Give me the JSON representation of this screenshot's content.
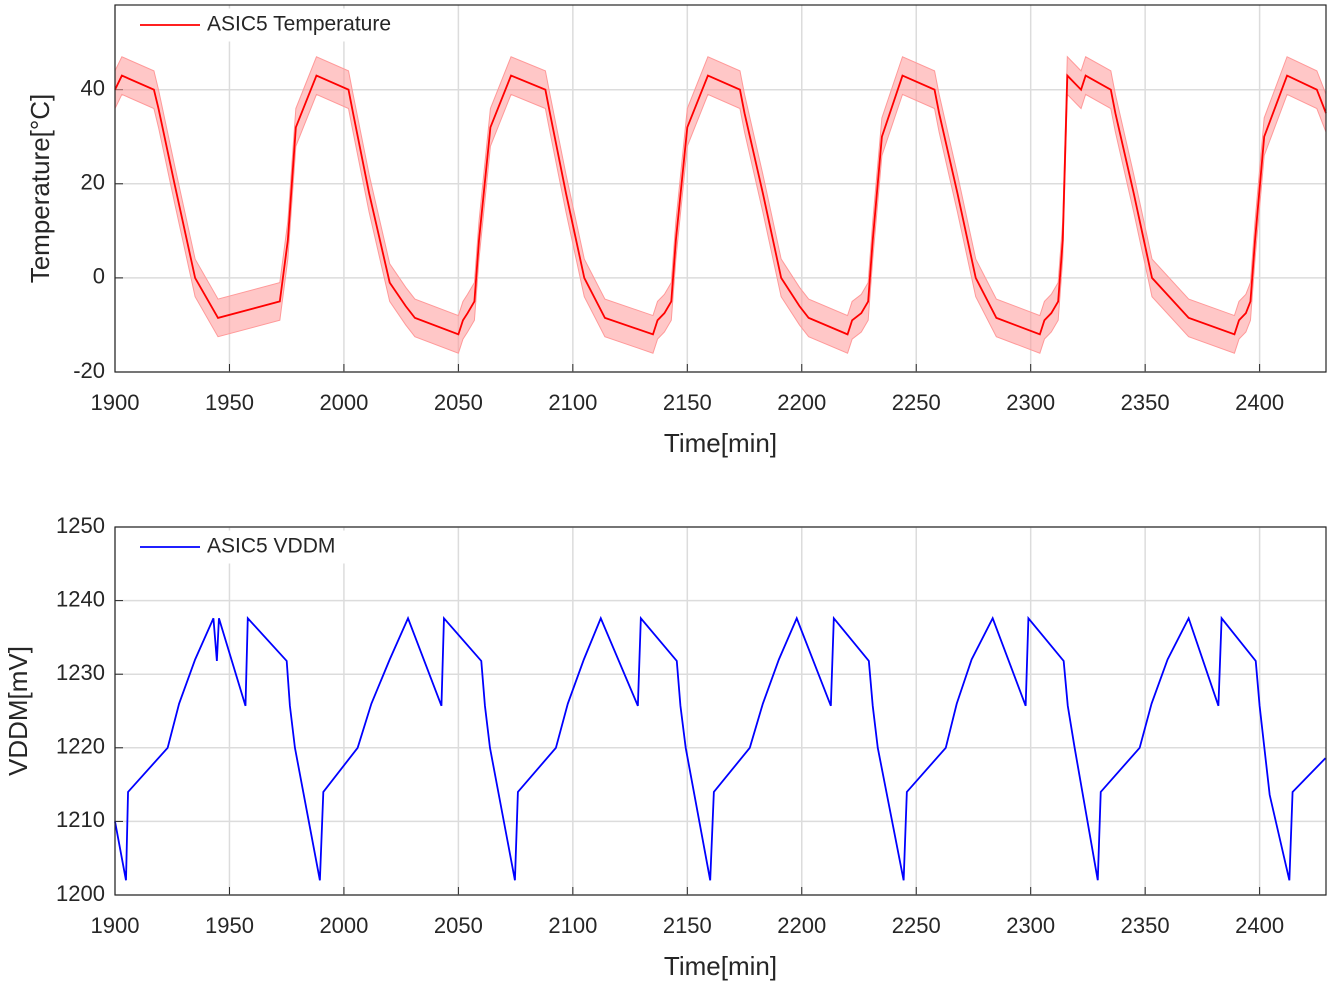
{
  "chart_data": [
    {
      "type": "line",
      "xlabel": "Time[min]",
      "ylabel": "Temperature[°C]",
      "x": [
        1900,
        1903,
        1917,
        1919,
        1926,
        1935,
        1945,
        1972,
        1975.5,
        1979,
        1988,
        2002,
        2004,
        2011,
        2020,
        2027,
        2031,
        2050,
        2052,
        2054,
        2057,
        2059,
        2064,
        2073,
        2088,
        2090,
        2097,
        2105,
        2114,
        2135,
        2137,
        2140,
        2143,
        2145,
        2150,
        2159,
        2173,
        2175,
        2183,
        2191,
        2199,
        2203,
        2220,
        2222,
        2226,
        2229,
        2231,
        2235,
        2244,
        2258,
        2260,
        2268,
        2276,
        2285,
        2304,
        2306,
        2309,
        2312,
        2314,
        2316,
        2322,
        2324,
        2335,
        2337,
        2345,
        2353,
        2369,
        2389,
        2391,
        2394,
        2396,
        2398,
        2402,
        2412,
        2425,
        2429
      ],
      "series": [
        {
          "name": "ASIC5 Temperature",
          "color": "#ff0000",
          "band_color": "#ff9999",
          "error": 4,
          "values": [
            40,
            43,
            40,
            36,
            20,
            0,
            -8.5,
            -5,
            8,
            32,
            43,
            40,
            35,
            18,
            -1,
            -6,
            -8.5,
            -12,
            -9,
            -7.5,
            -5,
            8,
            32,
            43,
            40,
            35,
            18,
            0,
            -8.5,
            -12,
            -9,
            -7.5,
            -5,
            8,
            32,
            43,
            40,
            35,
            18,
            0,
            -6,
            -8.5,
            -12,
            -9,
            -7.5,
            -5,
            8,
            30,
            43,
            40,
            35,
            18,
            0,
            -8.5,
            -12,
            -9,
            -7.5,
            -5,
            8,
            43,
            40,
            43,
            40,
            35,
            18,
            0,
            -8.5,
            -12,
            -9,
            -7.5,
            -5,
            8,
            30,
            43,
            40,
            35
          ]
        }
      ],
      "xlim": [
        1900,
        2429
      ],
      "ylim": [
        -20,
        58
      ],
      "xticks": [
        1900,
        1950,
        2000,
        2050,
        2100,
        2150,
        2200,
        2250,
        2300,
        2350,
        2400
      ],
      "yticks": [
        -20,
        0,
        20,
        40
      ],
      "grid": true,
      "legend": "upper left"
    },
    {
      "type": "line",
      "xlabel": "Time[min]",
      "ylabel": "VDDM[mV]",
      "x": [
        1900,
        1904.8,
        1905.7,
        1923,
        1928,
        1935,
        1943,
        1944.5,
        1945.4,
        1957,
        1958,
        1975,
        1976.4,
        1978.6,
        1989.5,
        1991,
        2006,
        2012,
        2020,
        2028,
        2042.6,
        2043.7,
        2060,
        2061.6,
        2063.8,
        2074.7,
        2076,
        2092.6,
        2097.8,
        2104.8,
        2112.2,
        2128.4,
        2129.7,
        2145.4,
        2147,
        2149.3,
        2160,
        2161.6,
        2177.3,
        2183,
        2190,
        2197.8,
        2212.7,
        2214,
        2229.3,
        2231,
        2233.2,
        2244.5,
        2245.9,
        2262.9,
        2267.7,
        2274.2,
        2283.4,
        2297.8,
        2299,
        2314.4,
        2316.2,
        2319.2,
        2329.3,
        2330.6,
        2347.6,
        2352.8,
        2359.8,
        2369,
        2382,
        2383.4,
        2398.3,
        2400,
        2404.4,
        2413,
        2414.4,
        2428.8
      ],
      "series": [
        {
          "name": "ASIC5 VDDM",
          "color": "#0000ff",
          "values": [
            1210,
            1202,
            1214,
            1220,
            1226,
            1232,
            1237.6,
            1231.8,
            1237.6,
            1225.7,
            1237.6,
            1231.8,
            1225.7,
            1220,
            1202,
            1214,
            1220,
            1226,
            1232,
            1237.6,
            1225.7,
            1237.6,
            1231.8,
            1225.7,
            1220,
            1202,
            1214,
            1220,
            1226,
            1232,
            1237.6,
            1225.7,
            1237.6,
            1231.8,
            1225.7,
            1220,
            1202,
            1214,
            1220,
            1226,
            1232,
            1237.6,
            1225.7,
            1237.6,
            1231.8,
            1225.7,
            1220,
            1202,
            1214,
            1220,
            1226,
            1232,
            1237.6,
            1225.7,
            1237.6,
            1231.8,
            1225.7,
            1220,
            1202,
            1214,
            1220,
            1226,
            1232,
            1237.6,
            1225.7,
            1237.6,
            1231.8,
            1225.7,
            1213.6,
            1202,
            1214,
            1218.6
          ]
        }
      ],
      "xlim": [
        1900,
        2429
      ],
      "ylim": [
        1200,
        1250
      ],
      "xticks": [
        1900,
        1950,
        2000,
        2050,
        2100,
        2150,
        2200,
        2250,
        2300,
        2350,
        2400
      ],
      "yticks": [
        1200,
        1210,
        1220,
        1230,
        1240,
        1250
      ],
      "grid": true,
      "legend": "upper left"
    }
  ]
}
